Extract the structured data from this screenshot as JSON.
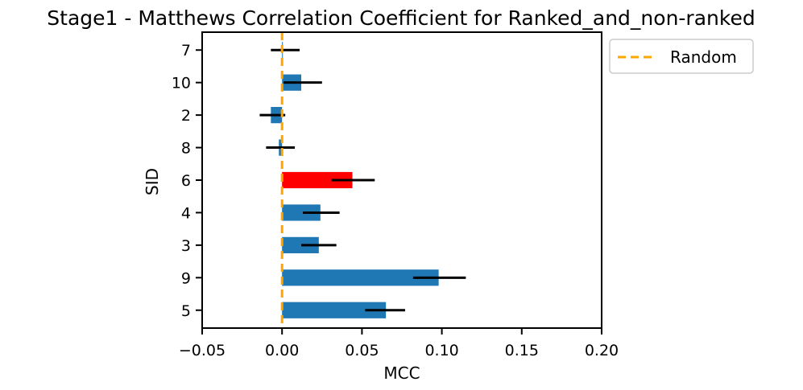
{
  "chart_data": {
    "type": "bar",
    "orientation": "horizontal",
    "title": "Stage1 - Matthews Correlation Coefficient for Ranked_and_non-ranked",
    "xlabel": "MCC",
    "ylabel": "SID",
    "xlim": [
      -0.05,
      0.2
    ],
    "xticks": [
      "−0.05",
      "0.00",
      "0.05",
      "0.10",
      "0.15",
      "0.20"
    ],
    "xtick_values": [
      -0.05,
      0.0,
      0.05,
      0.1,
      0.15,
      0.2
    ],
    "categories": [
      "7",
      "10",
      "2",
      "8",
      "6",
      "4",
      "3",
      "9",
      "5"
    ],
    "values": [
      0.0,
      0.012,
      -0.007,
      -0.002,
      0.044,
      0.024,
      0.023,
      0.098,
      0.065
    ],
    "error_low": [
      -0.007,
      0.001,
      -0.014,
      -0.01,
      0.031,
      0.013,
      0.012,
      0.082,
      0.052
    ],
    "error_high": [
      0.011,
      0.025,
      0.002,
      0.008,
      0.058,
      0.036,
      0.034,
      0.115,
      0.077
    ],
    "highlight_category": "6",
    "colors": {
      "bar": "#1f77b4",
      "highlight": "#ff0000",
      "error": "#000000",
      "random_line": "#ffa500"
    },
    "reference_line": {
      "label": "Random",
      "x": 0.0,
      "style": "dashed"
    },
    "legend": {
      "entries": [
        "Random"
      ],
      "placement": "outside-top-right"
    },
    "grid": false
  }
}
